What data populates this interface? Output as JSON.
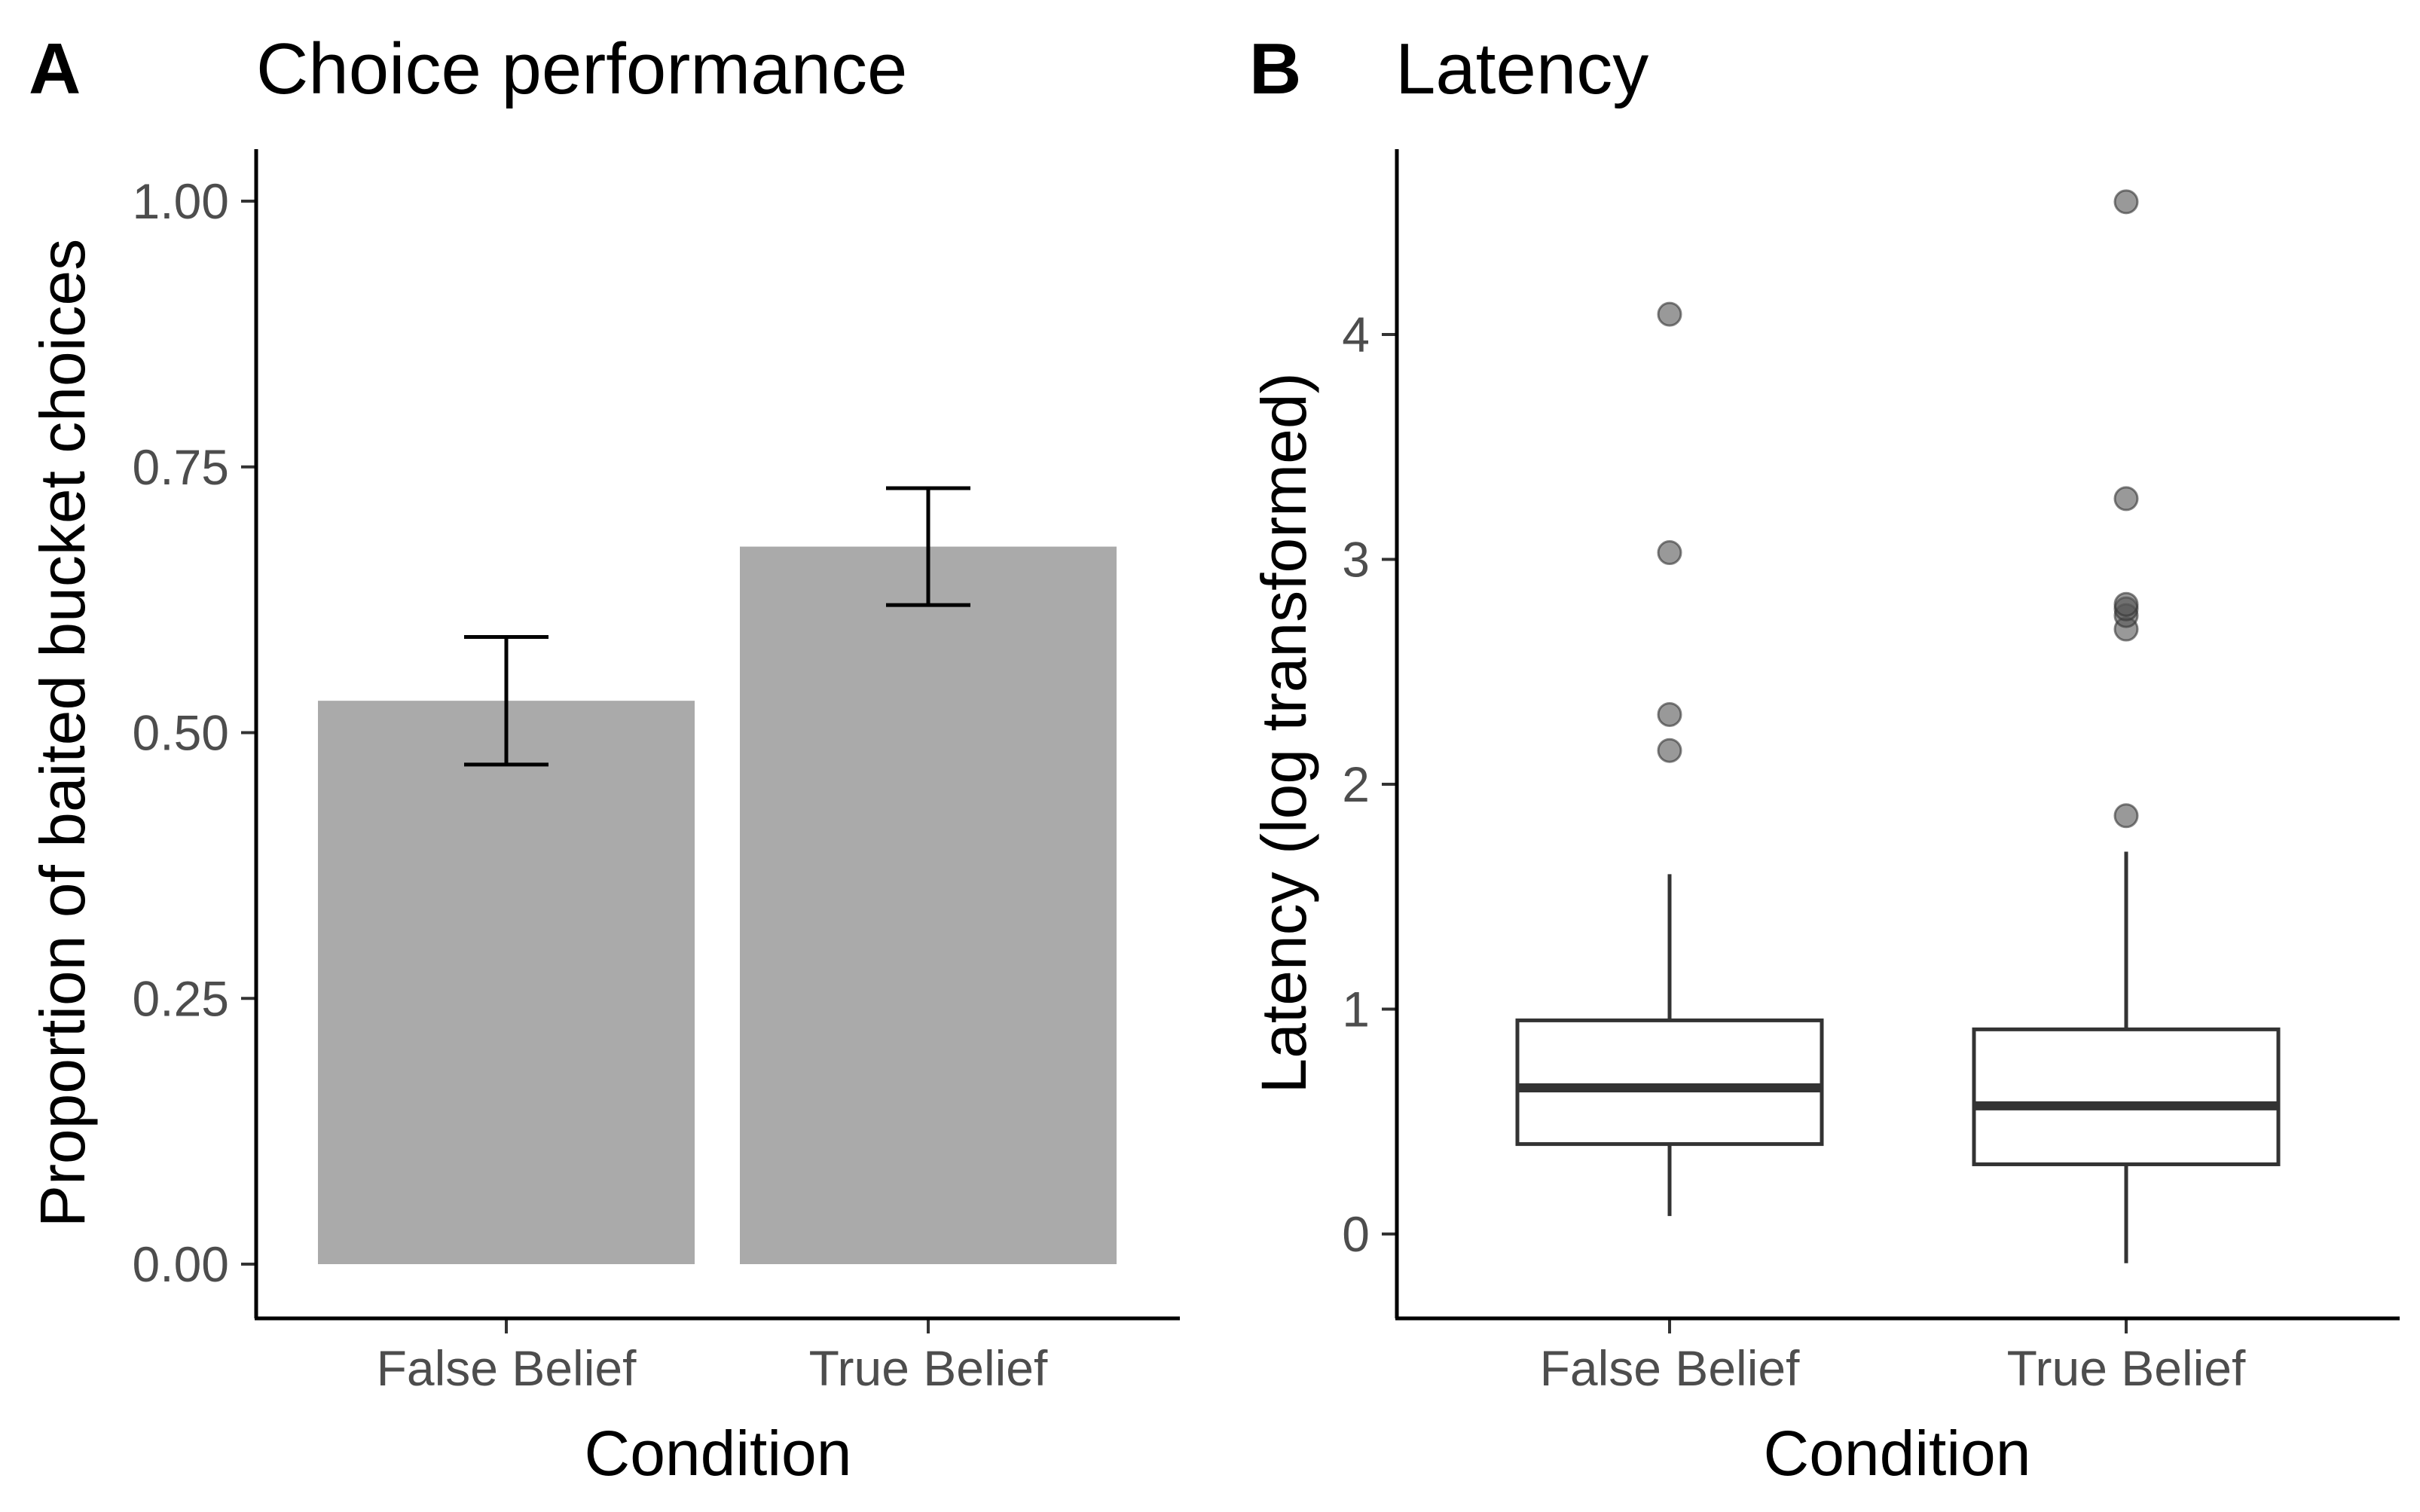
{
  "chart_data": [
    {
      "panel": "A",
      "type": "bar",
      "title": "Choice performance",
      "xlabel": "Condition",
      "ylabel": "Proportion of baited bucket choices",
      "categories": [
        "False Belief",
        "True Belief"
      ],
      "values": [
        0.53,
        0.675
      ],
      "error_bars": [
        {
          "lower": 0.47,
          "upper": 0.59
        },
        {
          "lower": 0.62,
          "upper": 0.73
        }
      ],
      "ylim": [
        0,
        1.05
      ],
      "yticks": [
        0,
        0.25,
        0.5,
        0.75,
        1.0
      ],
      "ytick_labels": [
        "0.00",
        "0.25",
        "0.50",
        "0.75",
        "1.00"
      ],
      "bar_color": "#aaaaaa",
      "grid": false
    },
    {
      "panel": "B",
      "type": "box",
      "title": "Latency",
      "xlabel": "Condition",
      "ylabel": "Latency (log transformed)",
      "categories": [
        "False Belief",
        "True Belief"
      ],
      "boxes": [
        {
          "whisker_low": 0.08,
          "q1": 0.4,
          "median": 0.65,
          "q3": 0.95,
          "whisker_high": 1.6,
          "outliers": [
            2.15,
            2.31,
            3.03,
            4.09
          ]
        },
        {
          "whisker_low": -0.13,
          "q1": 0.31,
          "median": 0.57,
          "q3": 0.91,
          "whisker_high": 1.7,
          "outliers": [
            1.86,
            2.69,
            2.75,
            2.78,
            2.8,
            3.27,
            4.59
          ]
        }
      ],
      "ylim": [
        -0.35,
        4.8
      ],
      "yticks": [
        0,
        1,
        2,
        3,
        4
      ],
      "ytick_labels": [
        "0",
        "1",
        "2",
        "3",
        "4"
      ],
      "grid": false
    }
  ]
}
